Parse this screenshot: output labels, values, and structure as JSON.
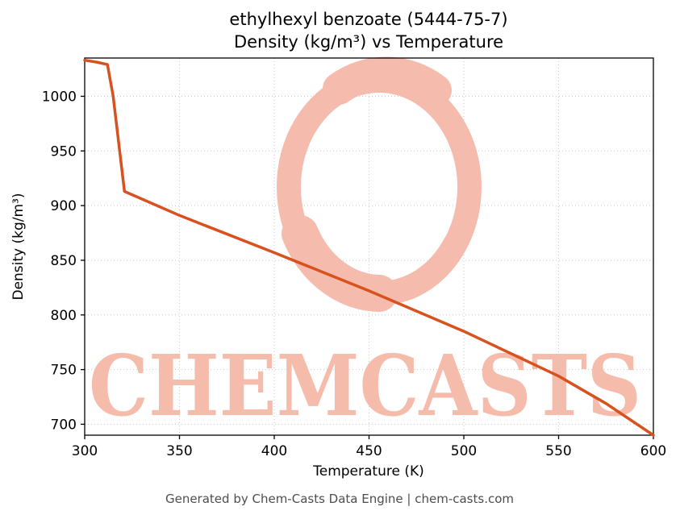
{
  "title": {
    "line1": "ethylhexyl benzoate (5444-75-7)",
    "line2": "Density (kg/m³) vs Temperature"
  },
  "footer": "Generated by Chem-Casts Data Engine | chem-casts.com",
  "watermark": {
    "text": "CHEMCASTS",
    "color": "#ee8668",
    "ring_color": "#ec7a5c"
  },
  "chart_data": {
    "type": "line",
    "title": "ethylhexyl benzoate (5444-75-7) Density (kg/m³) vs Temperature",
    "xlabel": "Temperature (K)",
    "ylabel": "Density (kg/m³)",
    "xlim": [
      300,
      600
    ],
    "ylim": [
      690,
      1035
    ],
    "xticks": [
      300,
      350,
      400,
      450,
      500,
      550,
      600
    ],
    "yticks": [
      700,
      750,
      800,
      850,
      900,
      950,
      1000
    ],
    "grid": true,
    "grid_style": "dotted",
    "grid_color": "#c8c8c8",
    "line_color": "#d8521f",
    "line_width": 3.5,
    "legend": "none",
    "series": [
      {
        "name": "density",
        "x": [
          300,
          307,
          312,
          315,
          321,
          350,
          400,
          450,
          500,
          550,
          575,
          600
        ],
        "y": [
          1033,
          1031,
          1029,
          1000,
          913,
          891,
          857,
          822,
          785,
          744,
          719,
          690
        ]
      }
    ]
  }
}
